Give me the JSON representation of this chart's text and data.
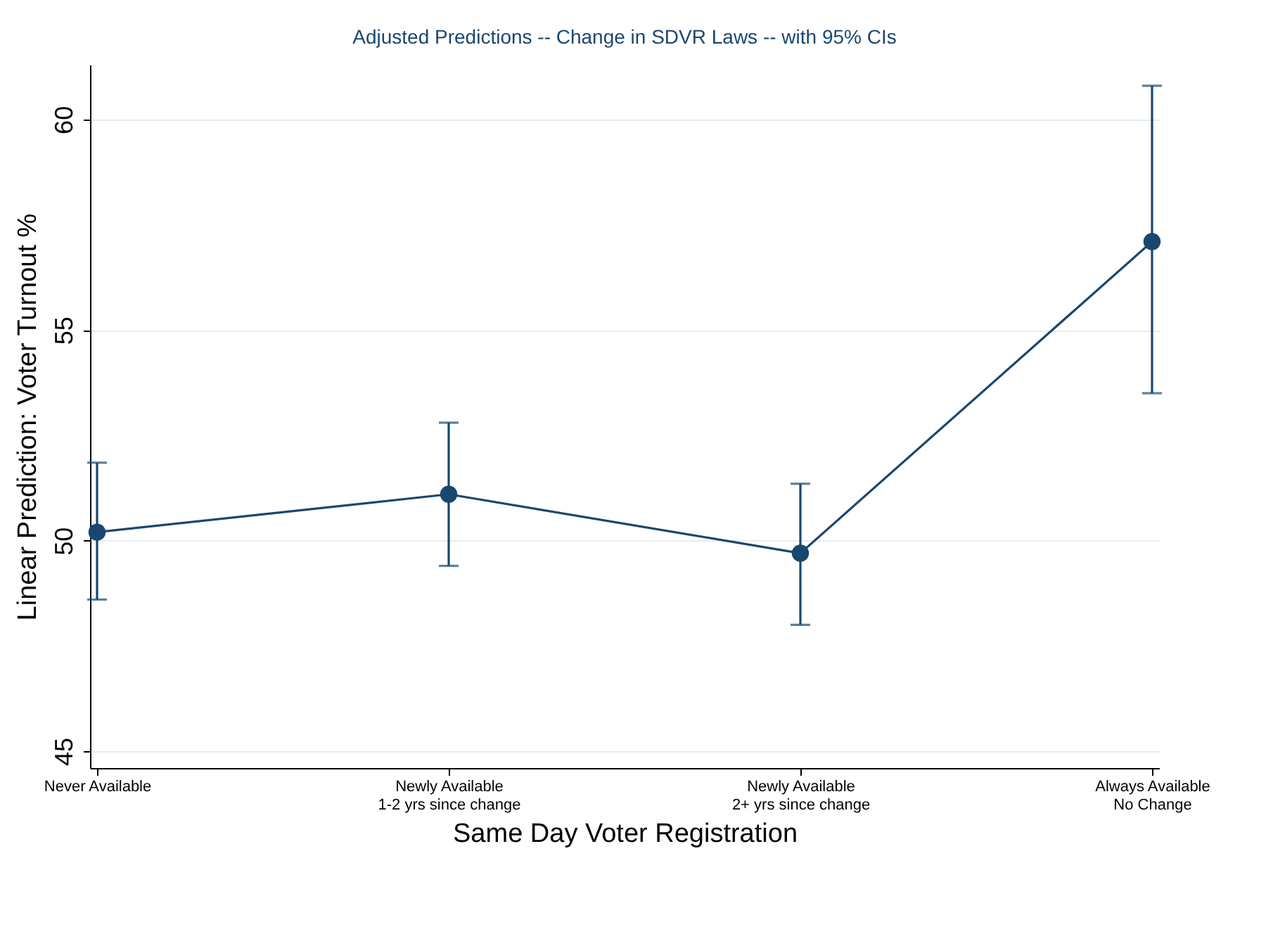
{
  "chart_data": {
    "type": "line",
    "title": "Adjusted Predictions -- Change in SDVR Laws -- with 95% CIs",
    "xlabel": "Same Day Voter Registration",
    "ylabel": "Linear Prediction: Voter Turnout %",
    "categories": [
      "Never Available",
      "Newly Available\n1-2 yrs since change",
      "Newly Available\n2+ yrs since change",
      "Always Available\nNo Change"
    ],
    "series": [
      {
        "color": "#1a476f",
        "values": [
          50.2,
          51.1,
          49.7,
          57.1
        ],
        "errors": [
          [
            48.6,
            51.85
          ],
          [
            49.4,
            52.8
          ],
          [
            48.0,
            51.35
          ],
          [
            53.5,
            60.8
          ]
        ]
      }
    ],
    "ylim": [
      44.6,
      61.3
    ],
    "yticks": [
      45,
      50,
      55,
      60
    ],
    "grid": "y",
    "marker": "circle",
    "line_style": "solid"
  }
}
